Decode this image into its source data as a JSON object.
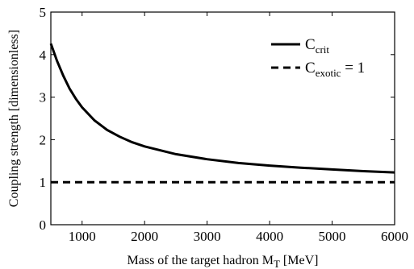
{
  "chart_data": {
    "type": "line",
    "xlabel": "Mass of the target hadron M",
    "xlabel_subscript": "T",
    "xlabel_unit": " [MeV]",
    "ylabel": "Coupling strength [dimensionless]",
    "xlim": [
      500,
      6000
    ],
    "ylim": [
      0,
      5
    ],
    "x_ticks": [
      1000,
      2000,
      3000,
      4000,
      5000,
      6000
    ],
    "y_ticks": [
      0,
      1,
      2,
      3,
      4,
      5
    ],
    "grid": false,
    "legend_position": "top-right",
    "series": [
      {
        "name": "C",
        "name_subscript": "crit",
        "name_suffix": "",
        "style": "solid",
        "color": "#000000",
        "x": [
          500,
          600,
          700,
          800,
          900,
          1000,
          1200,
          1400,
          1600,
          1800,
          2000,
          2500,
          3000,
          3500,
          4000,
          4500,
          5000,
          5500,
          6000
        ],
        "y": [
          4.26,
          3.85,
          3.5,
          3.2,
          2.96,
          2.76,
          2.45,
          2.23,
          2.07,
          1.94,
          1.84,
          1.66,
          1.54,
          1.45,
          1.39,
          1.34,
          1.3,
          1.26,
          1.23
        ]
      },
      {
        "name": "C",
        "name_subscript": "exotic",
        "name_suffix": " = 1",
        "style": "dashed",
        "color": "#000000",
        "x": [
          500,
          6000
        ],
        "y": [
          1,
          1
        ]
      }
    ]
  }
}
